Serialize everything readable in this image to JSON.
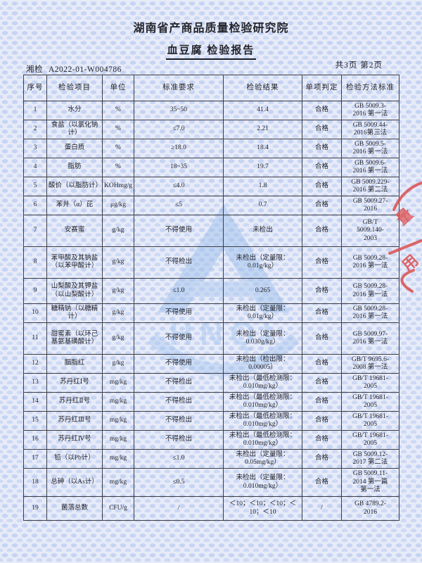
{
  "header": {
    "institute": "湖南省产商品质量检验研究院",
    "title": "血豆腐  检验报告",
    "report_no_prefix": "湘检",
    "report_no": "A2022-01-W004786",
    "page_info": "共3页  第2页"
  },
  "watermark": {
    "letters": "HNQI",
    "year": "1981"
  },
  "stamp": {
    "fragments": [
      "量",
      "用"
    ],
    "color": "#dd4f4f"
  },
  "table": {
    "headers": [
      "序号",
      "检验项目",
      "单位",
      "标准要求",
      "检验结果",
      "单项判定",
      "检验方法标准"
    ],
    "rows": [
      [
        "1",
        "水分",
        "%",
        "35~50",
        "41.4",
        "合格",
        "GB 5009.3-\n2016 第一法"
      ],
      [
        "2",
        "食盐（以氯化钠计）",
        "%",
        "≤7.0",
        "2.21",
        "合格",
        "GB 5009.44-\n2016第三法"
      ],
      [
        "3",
        "蛋白质",
        "%",
        "≥18.0",
        "18.4",
        "合格",
        "GB 5009.5-\n2016 第一法"
      ],
      [
        "4",
        "脂肪",
        "%",
        "18~35",
        "19.7",
        "合格",
        "GB 5009.6-\n2016 第一法"
      ],
      [
        "5",
        "酸价（以脂肪计）",
        "KOHmg/g",
        "≤4.0",
        "1.8",
        "合格",
        "GB 5009.229-\n2016 第二法"
      ],
      [
        "6",
        "苯并（α）芘",
        "μg/kg",
        "≤5",
        "0.7",
        "合格",
        "GB 5009.27-\n2016"
      ],
      [
        "7",
        "安赛蜜",
        "g/kg",
        "不得使用",
        "未检出",
        "合格",
        "GB/T\n5009.140-\n2003"
      ],
      [
        "8",
        "苯甲酸及其钠盐（以苯甲酸计）",
        "g/kg",
        "不得检出",
        "未检出（定量限：0.01g/kg）",
        "合格",
        "GB 5009.28-\n2016 第一法"
      ],
      [
        "9",
        "山梨酸及其钾盐（以山梨酸计）",
        "g/kg",
        "≤1.0",
        "0.265",
        "合格",
        "GB 5009.28-\n2016 第一法"
      ],
      [
        "10",
        "糖精钠（以糖精计）",
        "g/kg",
        "不得使用",
        "未检出（定量限：0.01g/kg）",
        "合格",
        "GB 5009.28-\n2016 第一法"
      ],
      [
        "11",
        "甜蜜素（以环己基氨基磺酸计）",
        "g/kg",
        "不得使用",
        "未检出（定量限：0.030g/kg）",
        "合格",
        "GB 5009.97-\n2016 第一法"
      ],
      [
        "12",
        "胭脂红",
        "g/kg",
        "不得使用",
        "未检出（检出限：0.00005）",
        "合格",
        "GB/T 9695.6-\n2008 第一法"
      ],
      [
        "13",
        "苏丹红Ⅰ号",
        "mg/kg",
        "不得检出",
        "未检出（最低检测限：0.010mg/kg）",
        "合格",
        "GB/T 19681-\n2005"
      ],
      [
        "14",
        "苏丹红Ⅱ号",
        "mg/kg",
        "不得检出",
        "未检出（最低检测限：0.010mg/kg）",
        "合格",
        "GB/T 19681-\n2005"
      ],
      [
        "15",
        "苏丹红Ⅲ号",
        "mg/kg",
        "不得检出",
        "未检出（最低检测限：0.010mg/kg）",
        "合格",
        "GB/T 19681-\n2005"
      ],
      [
        "16",
        "苏丹红Ⅳ号",
        "mg/kg",
        "不得检出",
        "未检出（最低检测限：0.010mg/kg）",
        "合格",
        "GB/T 19681-\n2005"
      ],
      [
        "17",
        "铅（以Pb计）",
        "mg/kg",
        "≤1.0",
        "未检出（定量限：0.05mg/kg）",
        "合格",
        "GB 5009.12-\n2017 第二法"
      ],
      [
        "18",
        "总砷（以As计）",
        "mg/kg",
        "≤0.5",
        "未检出（定量限：0.010mg/kg）",
        "合格",
        "GB 5009.11-\n2014 第一篇\n第一法"
      ],
      [
        "19",
        "菌落总数",
        "CFU/g",
        "/",
        "＜10；＜10；＜10；＜10；＜10",
        "/",
        "GB 4789.2-\n2016"
      ]
    ]
  }
}
